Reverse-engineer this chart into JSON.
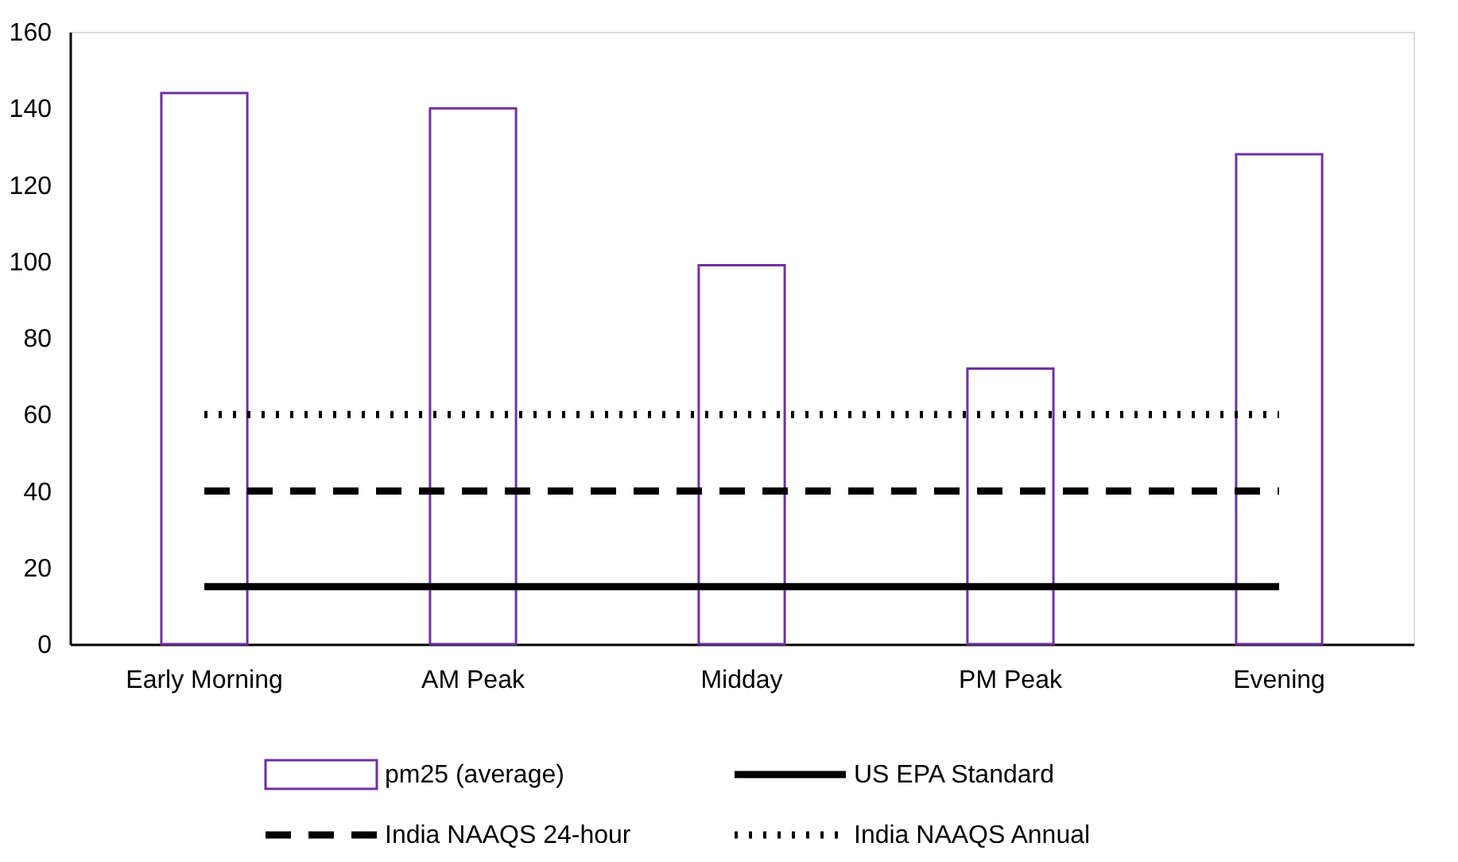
{
  "chart_data": {
    "type": "bar",
    "categories": [
      "Early Morning",
      "AM Peak",
      "Midday",
      "PM Peak",
      "Evening"
    ],
    "series": [
      {
        "name": "pm25 (average)",
        "color": "#7030a0",
        "values": [
          144,
          140,
          99,
          72,
          128
        ]
      },
      {
        "type": "line",
        "name": "US EPA Standard",
        "color": "#000000",
        "line_style": "solid",
        "values": [
          15,
          15,
          15,
          15,
          15
        ]
      },
      {
        "type": "line",
        "name": "India NAAQS 24-hour",
        "color": "#000000",
        "line_style": "dashed",
        "values": [
          40,
          40,
          40,
          40,
          40
        ]
      },
      {
        "type": "line",
        "name": "India NAAQS Annual",
        "color": "#000000",
        "line_style": "dotted",
        "values": [
          60,
          60,
          60,
          60,
          60
        ]
      }
    ],
    "ylim": [
      0,
      160
    ],
    "yticks": [
      0,
      20,
      40,
      60,
      80,
      100,
      120,
      140,
      160
    ],
    "legend": "bottom",
    "grid": false
  }
}
